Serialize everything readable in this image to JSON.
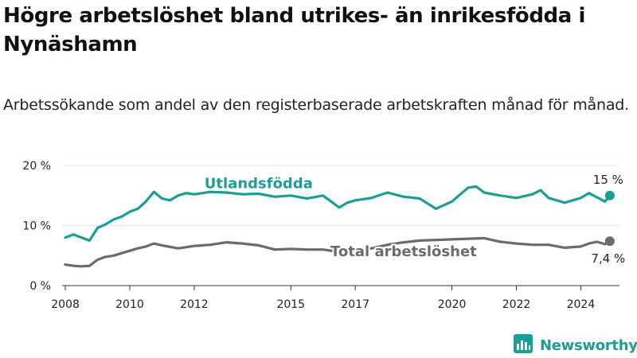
{
  "title": "Högre arbetslöshet bland utrikes- än inrikesfödda i Nynäshamn",
  "subtitle": "Arbetssökande som andel av den registerbaserade arbetskraften månad för månad.",
  "brand": {
    "name": "Newsworthy",
    "color": "#1a9e96",
    "icon": "bar-chart-logo-icon"
  },
  "colors": {
    "utlandsfodda": "#1a9e96",
    "total": "#6b6a70",
    "grid": "#e3e3e3",
    "axis": "#333333"
  },
  "chart_data": {
    "type": "line",
    "ylim": [
      0,
      20
    ],
    "yticks": [
      {
        "value": 0,
        "label": "0 %"
      },
      {
        "value": 10,
        "label": "10 %"
      },
      {
        "value": 20,
        "label": "20 %"
      }
    ],
    "xlim": [
      2007.9,
      2025.2
    ],
    "xticks": [
      "2008",
      "2010",
      "2012",
      "2015",
      "2017",
      "2020",
      "2022",
      "2024"
    ],
    "grid": true,
    "series": [
      {
        "name": "Utlandsfödda",
        "key": "utlandsfodda",
        "end_label": "15 %",
        "x": [
          2008.0,
          2008.25,
          2008.5,
          2008.75,
          2009.0,
          2009.25,
          2009.5,
          2009.75,
          2010.0,
          2010.25,
          2010.5,
          2010.75,
          2011.0,
          2011.25,
          2011.5,
          2011.75,
          2012.0,
          2012.5,
          2013.0,
          2013.5,
          2014.0,
          2014.5,
          2015.0,
          2015.5,
          2016.0,
          2016.25,
          2016.5,
          2016.75,
          2017.0,
          2017.5,
          2018.0,
          2018.5,
          2019.0,
          2019.5,
          2020.0,
          2020.5,
          2020.75,
          2021.0,
          2021.5,
          2022.0,
          2022.5,
          2022.75,
          2023.0,
          2023.5,
          2024.0,
          2024.25,
          2024.5,
          2024.75,
          2024.9
        ],
        "values": [
          8.0,
          8.5,
          8.0,
          7.5,
          9.6,
          10.2,
          11.0,
          11.5,
          12.3,
          12.8,
          14.0,
          15.6,
          14.5,
          14.2,
          15.0,
          15.4,
          15.2,
          15.6,
          15.5,
          15.2,
          15.3,
          14.8,
          15.0,
          14.5,
          15.0,
          14.0,
          13.0,
          13.8,
          14.2,
          14.6,
          15.5,
          14.8,
          14.5,
          12.8,
          14.0,
          16.3,
          16.5,
          15.5,
          15.0,
          14.6,
          15.2,
          15.9,
          14.6,
          13.8,
          14.6,
          15.4,
          14.7,
          14.0,
          15.0
        ]
      },
      {
        "name": "Total arbetslöshet",
        "key": "total",
        "end_label": "7,4 %",
        "x": [
          2008.0,
          2008.25,
          2008.5,
          2008.75,
          2009.0,
          2009.25,
          2009.5,
          2009.75,
          2010.0,
          2010.25,
          2010.5,
          2010.75,
          2011.0,
          2011.5,
          2012.0,
          2012.5,
          2013.0,
          2013.5,
          2014.0,
          2014.5,
          2015.0,
          2015.5,
          2016.0,
          2016.5,
          2017.0,
          2017.5,
          2018.0,
          2018.5,
          2019.0,
          2019.5,
          2020.0,
          2020.5,
          2021.0,
          2021.5,
          2022.0,
          2022.5,
          2023.0,
          2023.5,
          2024.0,
          2024.25,
          2024.5,
          2024.75,
          2024.9
        ],
        "values": [
          3.5,
          3.3,
          3.2,
          3.3,
          4.3,
          4.8,
          5.0,
          5.4,
          5.8,
          6.2,
          6.5,
          7.0,
          6.7,
          6.2,
          6.6,
          6.8,
          7.2,
          7.0,
          6.7,
          6.0,
          6.1,
          6.0,
          6.0,
          5.6,
          5.8,
          6.2,
          6.8,
          7.2,
          7.5,
          7.6,
          7.7,
          7.8,
          7.9,
          7.3,
          7.0,
          6.8,
          6.8,
          6.3,
          6.5,
          7.0,
          7.3,
          6.9,
          7.4
        ]
      }
    ]
  }
}
